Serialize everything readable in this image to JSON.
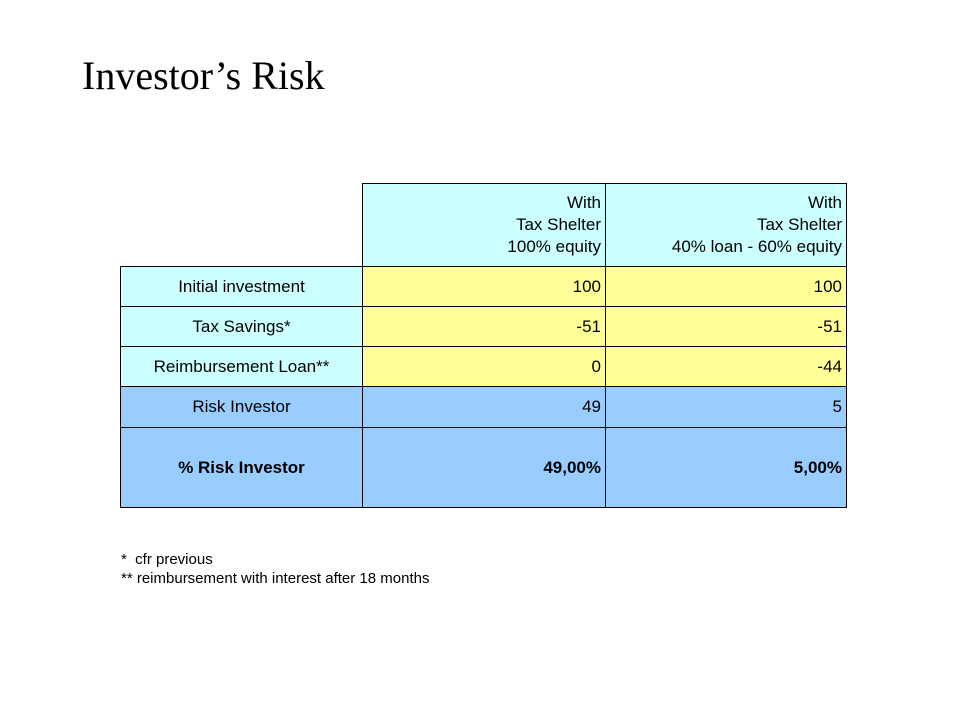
{
  "title": "Investor’s Risk",
  "table": {
    "columns": [
      {
        "line1": "With",
        "line2": "Tax Shelter",
        "line3": "100% equity"
      },
      {
        "line1": "With",
        "line2": "Tax Shelter",
        "line3": "40% loan - 60% equity"
      }
    ],
    "rows": [
      {
        "label": "Initial investment",
        "values": [
          "100",
          "100"
        ]
      },
      {
        "label": "Tax Savings*",
        "values": [
          "-51",
          "-51"
        ]
      },
      {
        "label": "Reimbursement Loan**",
        "values": [
          "0",
          "-44"
        ]
      },
      {
        "label": "Risk Investor",
        "values": [
          "49",
          "5"
        ]
      },
      {
        "label": "% Risk Investor",
        "values": [
          "49,00%",
          "5,00%"
        ]
      }
    ]
  },
  "notes": [
    "*  cfr previous",
    "** reimbursement with interest after 18 months"
  ],
  "colors": {
    "header_fill": "#ccffff",
    "value_fill": "#ffff99",
    "summary_fill": "#99ccff"
  }
}
